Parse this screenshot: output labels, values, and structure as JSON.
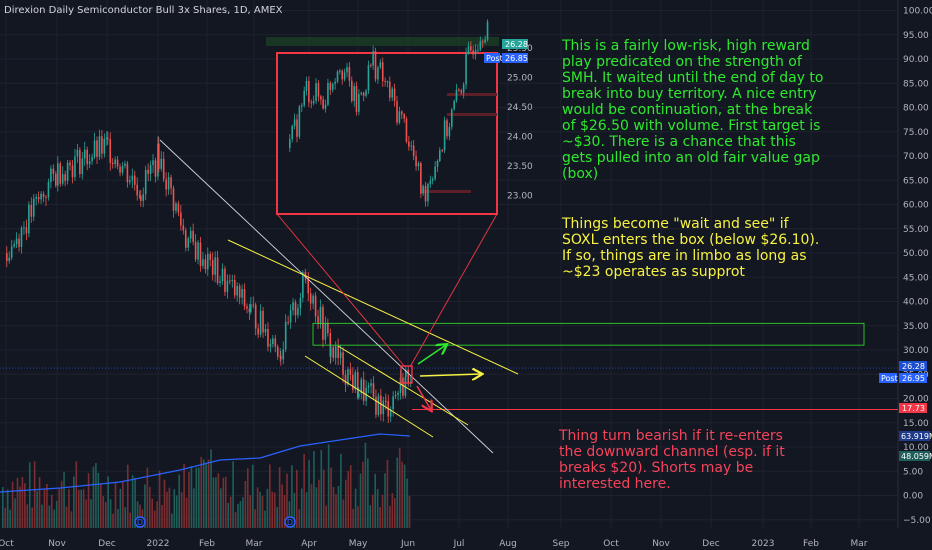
{
  "title": "Direxion Daily Semiconductor Bull 3x Shares, 1D, AMEX",
  "notes": {
    "green": "This is a fairly low-risk, high reward play predicated on the strength of SMH. It waited until the end of day to break into buy territory. A nice entry would be continuation, at the break of $26.50 with volume. First target is ~$30. There is a chance that this gets pulled into an old fair value gap (box)",
    "yellow": "Things become \"wait and see\" if SOXL enters the box (below $26.10). If so, things are in limbo as long as ~$23 operates as supprot",
    "red": "Thing turn bearish if it re-enters the downward channel (esp. if it breaks $20). Shorts may be interested here."
  },
  "badges": {
    "main_top": "26.28",
    "main_post": "Post",
    "main_price": "26.95",
    "red_level": "17.73",
    "vol1": "63.919M",
    "vol2": "48.059M",
    "inset_top": "26.28",
    "inset_post": "Post",
    "inset_price": "26.85"
  },
  "colors": {
    "up": "#26a69a",
    "down": "#ef5350",
    "accent_red": "#f23645",
    "yellow": "#f7f243",
    "green": "#2ee82e",
    "blue": "#2962ff"
  },
  "chart_data": [
    {
      "type": "candlestick",
      "title": "Direxion Daily Semiconductor Bull 3x Shares, 1D, AMEX",
      "x_ticks": [
        "Oct",
        "Nov",
        "Dec",
        "2022",
        "Feb",
        "Mar",
        "Apr",
        "May",
        "Jun",
        "Jul",
        "Aug",
        "Sep",
        "Oct",
        "Nov",
        "Dec",
        "2023",
        "Feb",
        "Mar"
      ],
      "y_ticks": [
        100,
        95,
        90,
        85,
        80,
        75,
        70,
        65,
        60,
        55,
        50,
        45,
        40,
        35,
        30,
        25,
        20,
        15,
        10,
        5,
        0,
        -5
      ],
      "ylim": [
        -5,
        100
      ],
      "close_path_points": [
        {
          "x": "Oct",
          "y": 50
        },
        {
          "x": "Nov",
          "y": 67
        },
        {
          "x": "Dec",
          "y": 72
        },
        {
          "x": "Dec",
          "y": 63
        },
        {
          "x": "2022",
          "y": 70
        },
        {
          "x": "2022",
          "y": 53
        },
        {
          "x": "Feb",
          "y": 48
        },
        {
          "x": "Mar",
          "y": 38
        },
        {
          "x": "Mar",
          "y": 30
        },
        {
          "x": "Apr",
          "y": 45
        },
        {
          "x": "Apr",
          "y": 30
        },
        {
          "x": "May",
          "y": 22
        },
        {
          "x": "May",
          "y": 18
        },
        {
          "x": "Jun",
          "y": 24
        },
        {
          "x": "Jun",
          "y": 26.95
        }
      ],
      "levels": [
        {
          "name": "fair value gap box",
          "from": 31,
          "to": 35.5
        },
        {
          "name": "current price",
          "value": 26.28
        },
        {
          "name": "bearish level",
          "value": 17.73
        }
      ],
      "grid": true
    },
    {
      "type": "candlestick",
      "name": "zoomed inset",
      "y_ticks": [
        25.5,
        25.0,
        24.5,
        24.0,
        23.5,
        23.0
      ],
      "close_path_points": [
        {
          "x": 1,
          "y": 23.8
        },
        {
          "x": 2,
          "y": 24.8
        },
        {
          "x": 3,
          "y": 24.6
        },
        {
          "x": 4,
          "y": 25.3
        },
        {
          "x": 5,
          "y": 24.5
        },
        {
          "x": 6,
          "y": 25.3
        },
        {
          "x": 7,
          "y": 24.7
        },
        {
          "x": 8,
          "y": 24.1
        },
        {
          "x": 9,
          "y": 23.0
        },
        {
          "x": 10,
          "y": 23.8
        },
        {
          "x": 11,
          "y": 24.6
        },
        {
          "x": 12,
          "y": 25.6
        },
        {
          "x": 13,
          "y": 26.0
        }
      ]
    }
  ]
}
